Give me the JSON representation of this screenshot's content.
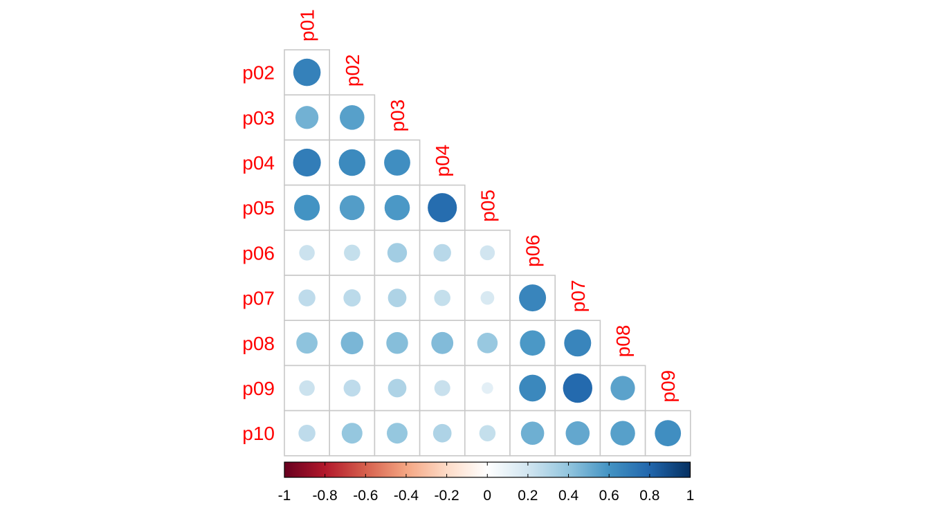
{
  "chart_data": {
    "type": "heatmap",
    "style": "corrplot-lower-circle",
    "variables": [
      "p01",
      "p02",
      "p03",
      "p04",
      "p05",
      "p06",
      "p07",
      "p08",
      "p09",
      "p10"
    ],
    "row_labels": [
      "p02",
      "p03",
      "p04",
      "p05",
      "p06",
      "p07",
      "p08",
      "p09",
      "p10"
    ],
    "column_labels": [
      "p01",
      "p02",
      "p03",
      "p04",
      "p05",
      "p06",
      "p07",
      "p08",
      "p09"
    ],
    "correlations": [
      [
        0.68
      ],
      [
        0.48,
        0.55
      ],
      [
        0.7,
        0.64,
        0.62
      ],
      [
        0.6,
        0.56,
        0.58,
        0.77
      ],
      [
        0.22,
        0.24,
        0.35,
        0.28,
        0.2
      ],
      [
        0.26,
        0.27,
        0.31,
        0.24,
        0.17,
        0.66
      ],
      [
        0.41,
        0.46,
        0.43,
        0.44,
        0.38,
        0.58,
        0.66
      ],
      [
        0.22,
        0.26,
        0.31,
        0.23,
        0.12,
        0.65,
        0.78,
        0.54
      ],
      [
        0.26,
        0.39,
        0.39,
        0.31,
        0.24,
        0.49,
        0.52,
        0.55,
        0.62
      ]
    ],
    "colorbar": {
      "range": [
        -1,
        1
      ],
      "ticks": [
        "-1",
        "-0.8",
        "-0.6",
        "-0.4",
        "-0.2",
        "0",
        "0.2",
        "0.4",
        "0.6",
        "0.8",
        "1"
      ],
      "colors": [
        "#67001f",
        "#b2182b",
        "#d6604d",
        "#f4a582",
        "#fddbc7",
        "#ffffff",
        "#d1e5f0",
        "#92c5de",
        "#4393c3",
        "#2166ac",
        "#053061"
      ],
      "placement": "bottom"
    },
    "label_color": "#ff0000",
    "grid": true
  }
}
